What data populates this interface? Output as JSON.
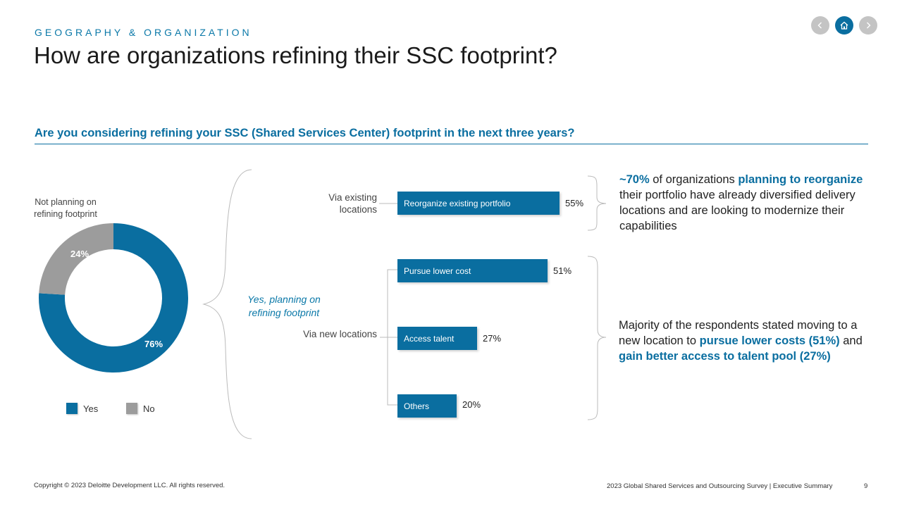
{
  "header": {
    "eyebrow": "GEOGRAPHY & ORGANIZATION",
    "title": "How are organizations refining their SSC footprint?"
  },
  "nav": {
    "prev_icon": "chevron-left-icon",
    "home_icon": "home-icon",
    "next_icon": "chevron-right-icon"
  },
  "question": "Are you considering refining your SSC (Shared Services Center) footprint in the next three years?",
  "donut": {
    "callout": "Not planning on refining footprint",
    "yes_pct_label": "76%",
    "no_pct_label": "24%",
    "yes_branch_label": "Yes, planning on refining footprint"
  },
  "legend": {
    "yes": "Yes",
    "no": "No"
  },
  "groups": {
    "existing": "Via existing locations",
    "new": "Via new locations"
  },
  "bars": [
    {
      "label": "Reorganize existing portfolio",
      "value_label": "55%"
    },
    {
      "label": "Pursue lower cost",
      "value_label": "51%"
    },
    {
      "label": "Access talent",
      "value_label": "27%"
    },
    {
      "label": "Others",
      "value_label": "20%"
    }
  ],
  "insights": {
    "first": {
      "p1": "~70%",
      "p2": " of organizations ",
      "p3": "planning to reorganize",
      "p4": " their portfolio have already diversified delivery locations and are looking to modernize their capabilities"
    },
    "second": {
      "p1": "Majority of the respondents stated moving to a new location to ",
      "p2": "pursue lower costs (51%)",
      "p3": " and ",
      "p4": "gain better access to talent pool (27%)"
    }
  },
  "footer": {
    "copyright": "Copyright © 2023 Deloitte Development LLC. All rights reserved.",
    "source": "2023 Global Shared Services and Outsourcing Survey | Executive Summary",
    "page": "9"
  },
  "colors": {
    "accent": "#0a6ea0",
    "yes": "#0a6ea0",
    "no": "#9c9c9c"
  },
  "chart_data": [
    {
      "type": "pie",
      "donut": true,
      "categories": [
        "Yes",
        "No"
      ],
      "values": [
        76,
        24
      ],
      "title": "",
      "legend": "bottom"
    },
    {
      "type": "bar",
      "orientation": "horizontal",
      "categories": [
        "Reorganize existing portfolio",
        "Pursue lower cost",
        "Access talent",
        "Others"
      ],
      "values": [
        55,
        51,
        27,
        20
      ],
      "groups": [
        {
          "name": "Via existing locations",
          "categories": [
            "Reorganize existing portfolio"
          ]
        },
        {
          "name": "Via new locations",
          "categories": [
            "Pursue lower cost",
            "Access talent",
            "Others"
          ]
        }
      ],
      "title": "",
      "xlabel": "",
      "ylabel": ""
    }
  ]
}
